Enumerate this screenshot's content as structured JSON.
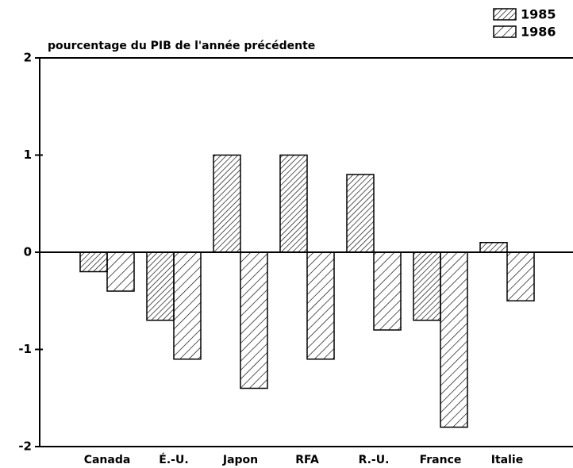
{
  "chart_data": {
    "type": "bar",
    "title": "pourcentage du PIB de l'année précédente",
    "categories": [
      "Canada",
      "É.-U.",
      "Japon",
      "RFA",
      "R.-U.",
      "France",
      "Italie"
    ],
    "series": [
      {
        "name": "1985",
        "color": "#000000",
        "values": [
          -0.2,
          -0.7,
          1.0,
          1.0,
          0.8,
          -0.7,
          0.1
        ]
      },
      {
        "name": "1986",
        "color": "#000000",
        "values": [
          -0.4,
          -1.1,
          -1.4,
          -1.1,
          -0.8,
          -1.8,
          -0.5
        ]
      }
    ],
    "ylim": [
      -2,
      2
    ],
    "yticks": [
      2,
      1,
      0,
      -1,
      -2
    ]
  }
}
